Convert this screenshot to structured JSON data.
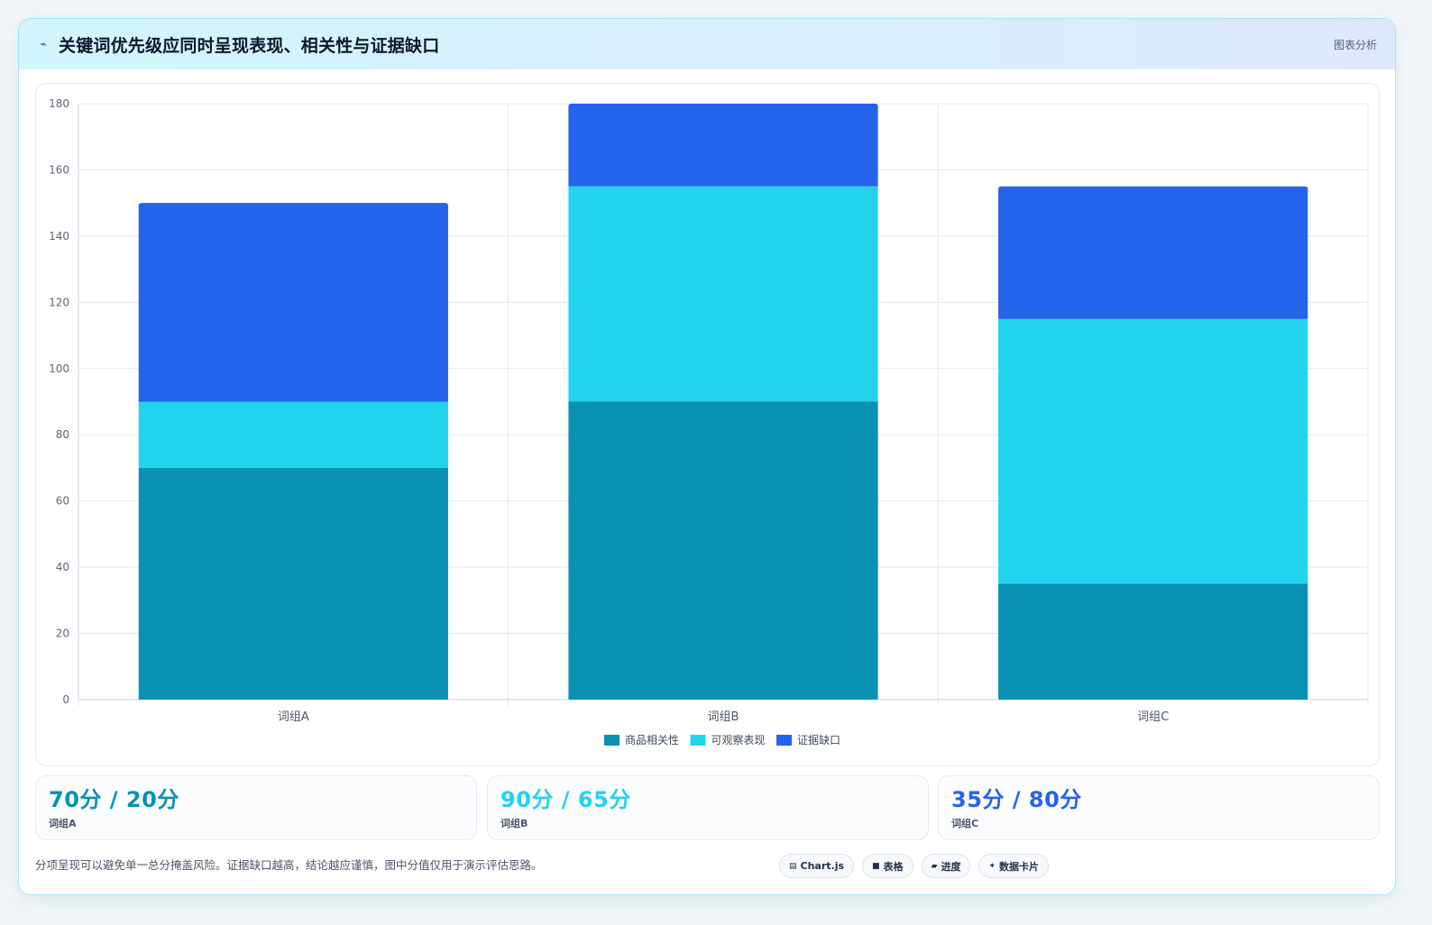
{
  "header": {
    "title": "关键词优先级应同时呈现表现、相关性与证据缺口",
    "icon": "pulse-icon",
    "tag": "图表分析"
  },
  "chart_data": {
    "type": "bar",
    "stacked": true,
    "categories": [
      "词组A",
      "词组B",
      "词组C"
    ],
    "series": [
      {
        "name": "商品相关性",
        "values": [
          70,
          90,
          35
        ],
        "color": "#0891b2"
      },
      {
        "name": "可观察表现",
        "values": [
          20,
          65,
          80
        ],
        "color": "#22d3ee"
      },
      {
        "name": "证据缺口",
        "values": [
          60,
          25,
          40
        ],
        "color": "#2563eb"
      }
    ],
    "ylim": [
      0,
      180
    ],
    "yticks": [
      0,
      20,
      40,
      60,
      80,
      100,
      120,
      140,
      160,
      180
    ],
    "grid": true,
    "legend": "bottom-center",
    "title": "",
    "xlabel": "",
    "ylabel": ""
  },
  "stats": [
    {
      "value": "70分 / 20分",
      "label": "词组A",
      "color": "#0891b2"
    },
    {
      "value": "90分 / 65分",
      "label": "词组B",
      "color": "#22d3ee"
    },
    {
      "value": "35分 / 80分",
      "label": "词组C",
      "color": "#2563eb"
    }
  ],
  "footer": {
    "note": "分项呈现可以避免单一总分掩盖风险。证据缺口越高，结论越应谨慎，图中分值仅用于演示评估思路。"
  },
  "chips": [
    {
      "icon": "chart-icon",
      "glyph": "▤",
      "label": "Chart.js"
    },
    {
      "icon": "table-icon",
      "glyph": "■",
      "label": "表格"
    },
    {
      "icon": "progress-icon",
      "glyph": "▰",
      "label": "进度"
    },
    {
      "icon": "card-icon",
      "glyph": "✦",
      "label": "数据卡片"
    }
  ]
}
